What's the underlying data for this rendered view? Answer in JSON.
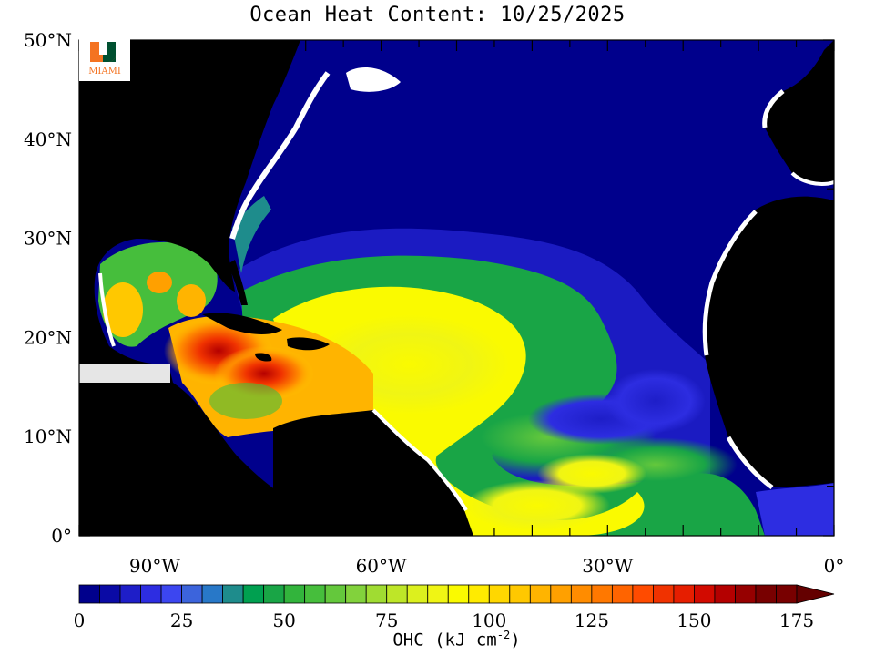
{
  "title": "Ocean Heat Content: 10/25/2025",
  "logo": {
    "name": "university-of-miami-logo",
    "text": "MIAMI"
  },
  "map": {
    "lat_labels": [
      "50°N",
      "40°N",
      "30°N",
      "20°N",
      "10°N",
      "0°"
    ],
    "lon_labels": [
      "90°W",
      "60°W",
      "30°W",
      "0°"
    ],
    "lat_values": [
      50,
      40,
      30,
      20,
      10,
      0
    ],
    "lon_values": [
      -90,
      -60,
      -30,
      0
    ],
    "extent": {
      "lon_min": -100,
      "lon_max": 0,
      "lat_min": 0,
      "lat_max": 50
    },
    "land_color": "#000000",
    "ice_mask_color": "#ffffff"
  },
  "colorbar": {
    "min": 0,
    "max": 175,
    "step": 5,
    "tick_labels": [
      "0",
      "25",
      "50",
      "75",
      "100",
      "125",
      "150",
      "175"
    ],
    "tick_values": [
      0,
      25,
      50,
      75,
      100,
      125,
      150,
      175
    ],
    "unit_label_main": "OHC (kJ cm",
    "unit_label_exp": "-2",
    "unit_label_close": ")",
    "colors": [
      "#00008c",
      "#0a0aa5",
      "#1e1ec8",
      "#2d2de1",
      "#3c46f0",
      "#3c64dc",
      "#2878c8",
      "#1e8c8c",
      "#00a050",
      "#19a546",
      "#32b43c",
      "#46be3c",
      "#64c83c",
      "#82d23c",
      "#a0dc32",
      "#bee628",
      "#dcf01e",
      "#f0f514",
      "#fafa00",
      "#ffeb00",
      "#ffd700",
      "#ffc800",
      "#ffb400",
      "#ffa000",
      "#ff8c00",
      "#ff7800",
      "#ff6400",
      "#ff4b00",
      "#f03200",
      "#e61e00",
      "#d20a00",
      "#b40000",
      "#960000",
      "#780000"
    ],
    "overflow_color": "#640000"
  }
}
